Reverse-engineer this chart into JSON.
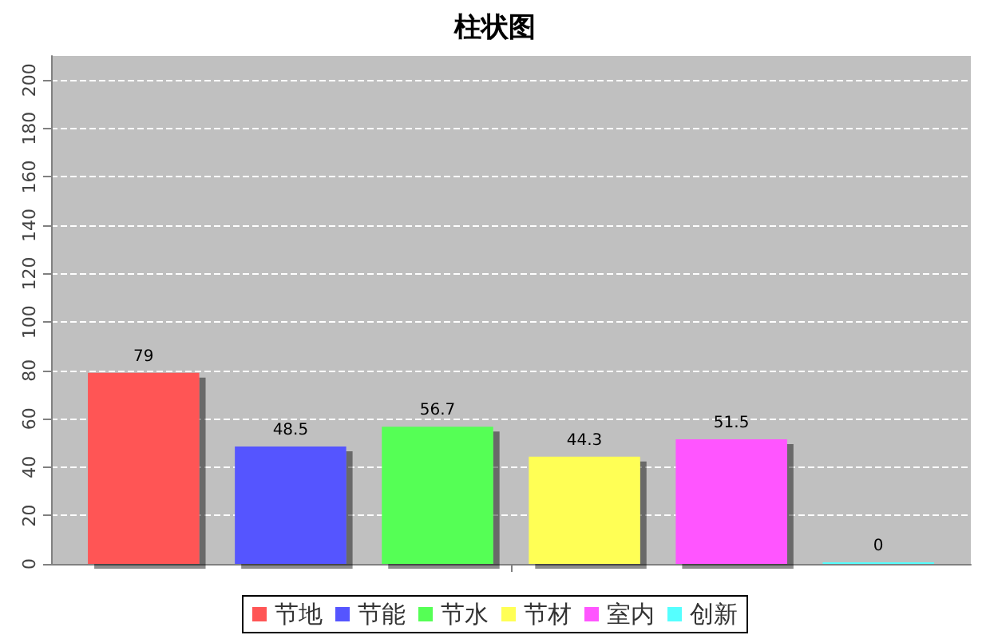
{
  "chart_data": {
    "type": "bar",
    "title": "柱状图",
    "categories": [
      null
    ],
    "series": [
      {
        "name": "节地",
        "color": "#ff5555",
        "values": [
          79
        ]
      },
      {
        "name": "节能",
        "color": "#5555ff",
        "values": [
          48.5
        ]
      },
      {
        "name": "节水",
        "color": "#55ff55",
        "values": [
          56.7
        ]
      },
      {
        "name": "节材",
        "color": "#ffff55",
        "values": [
          44.3
        ]
      },
      {
        "name": "室内",
        "color": "#ff55ff",
        "values": [
          51.5
        ]
      },
      {
        "name": "创新",
        "color": "#55ffff",
        "values": [
          0
        ]
      }
    ],
    "ylim": [
      0,
      210
    ],
    "yticks": [
      0,
      20,
      40,
      60,
      80,
      100,
      120,
      140,
      160,
      180,
      200
    ],
    "grid": "y",
    "legend": "bottom",
    "data_labels": true
  }
}
